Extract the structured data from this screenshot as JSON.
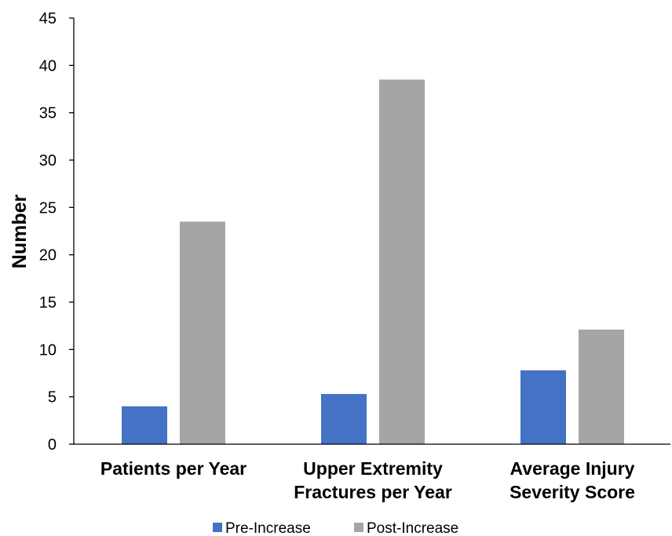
{
  "chart_data": {
    "type": "bar",
    "title": "",
    "xlabel": "",
    "ylabel": "Number",
    "ylim": [
      0,
      45
    ],
    "yticks": [
      0,
      5,
      10,
      15,
      20,
      25,
      30,
      35,
      40,
      45
    ],
    "categories": [
      [
        "Patients per Year"
      ],
      [
        "Upper Extremity",
        "Fractures per Year"
      ],
      [
        "Average Injury",
        "Severity Score"
      ]
    ],
    "series": [
      {
        "name": "Pre-Increase",
        "color": "#4472C4",
        "values": [
          4.0,
          5.3,
          7.8
        ]
      },
      {
        "name": "Post-Increase",
        "color": "#A5A5A5",
        "values": [
          23.5,
          38.5,
          12.1
        ]
      }
    ],
    "grid": false,
    "legend": "bottom"
  }
}
